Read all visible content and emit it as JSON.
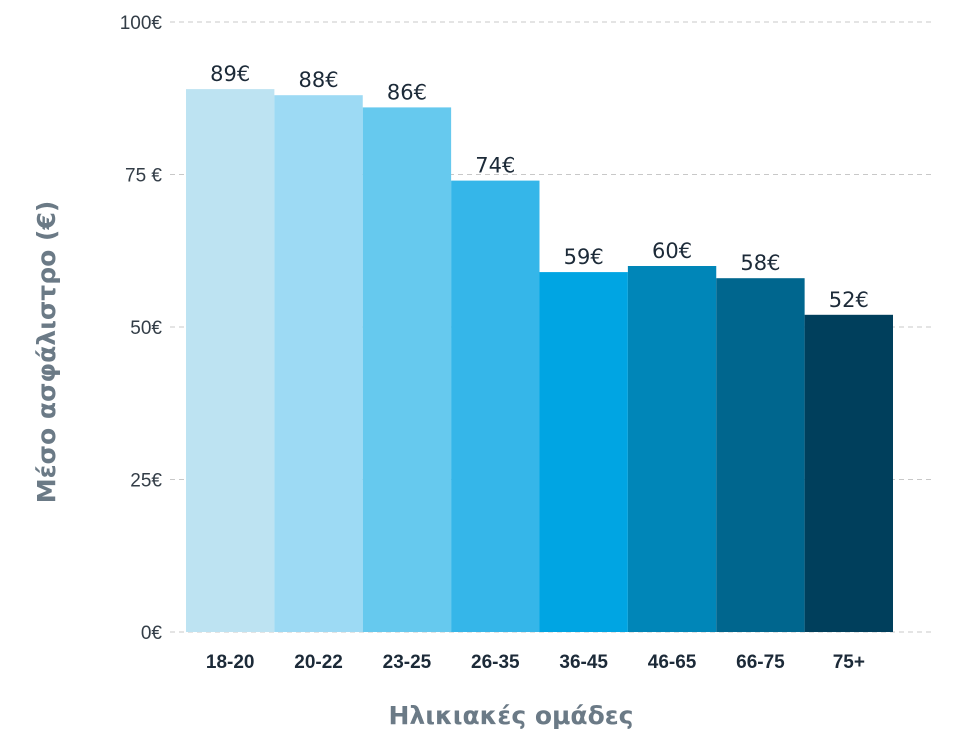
{
  "chart_data": {
    "type": "bar",
    "categories": [
      "18-20",
      "20-22",
      "23-25",
      "26-35",
      "36-45",
      "46-65",
      "66-75",
      "75+"
    ],
    "values": [
      89,
      88,
      86,
      74,
      59,
      60,
      58,
      52
    ],
    "data_labels": [
      "89€",
      "88€",
      "86€",
      "74€",
      "59€",
      "60€",
      "58€",
      "52€"
    ],
    "bar_colors": [
      "#bde3f2",
      "#9ddaf4",
      "#66c9ee",
      "#35b6e9",
      "#00a5e3",
      "#0086b8",
      "#00668e",
      "#003f5c"
    ],
    "xlabel": "Ηλικιακές ομάδες",
    "ylabel": "Μέσο ασφάλιστρο (€)",
    "ylim": [
      0,
      100
    ],
    "yticks": [
      0,
      25,
      50,
      75,
      100
    ],
    "ytick_labels": [
      "0€",
      "25€",
      "50€",
      "75 €",
      "100€"
    ],
    "grid": true,
    "legend": "none"
  }
}
